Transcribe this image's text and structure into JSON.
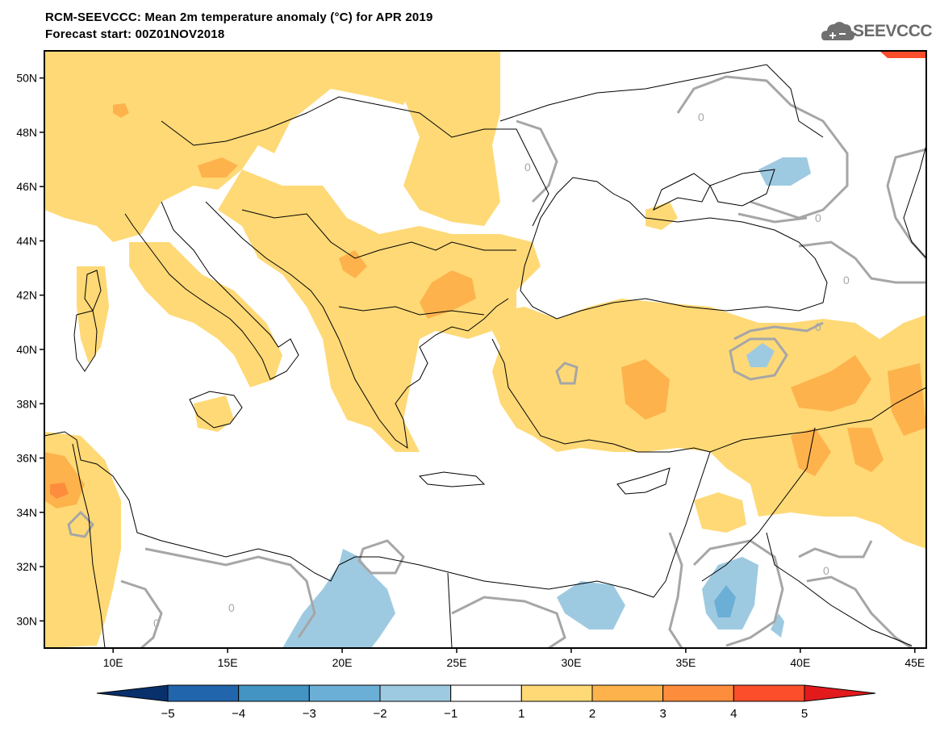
{
  "header": {
    "title_line1": "RCM-SEEVCCC: Mean 2m temperature anomaly (°C) for APR 2019",
    "title_line2": "Forecast start: 00Z01NOV2018",
    "logo_text": "SEEVCCC",
    "logo_icon": "cloud-icon"
  },
  "map": {
    "lon_range": [
      7,
      45.5
    ],
    "lat_range": [
      29,
      51
    ],
    "lat_ticks": [
      "30N",
      "32N",
      "34N",
      "36N",
      "38N",
      "40N",
      "42N",
      "44N",
      "46N",
      "48N",
      "50N"
    ],
    "lon_ticks": [
      "10E",
      "15E",
      "20E",
      "25E",
      "30E",
      "35E",
      "40E",
      "45E"
    ],
    "contour_label": "0",
    "contour_color": "#a6a6a6",
    "coastline_color": "#000000"
  },
  "colorbar": {
    "labels": [
      "-5",
      "-4",
      "-3",
      "-2",
      "-1",
      "1",
      "2",
      "3",
      "4",
      "5"
    ],
    "colors": [
      "#08306b",
      "#2166ac",
      "#4393c3",
      "#6baed6",
      "#9ecae1",
      "#ffffff",
      "#fed976",
      "#feb24c",
      "#fd8d3c",
      "#fc4e2a",
      "#e31a1c"
    ]
  }
}
